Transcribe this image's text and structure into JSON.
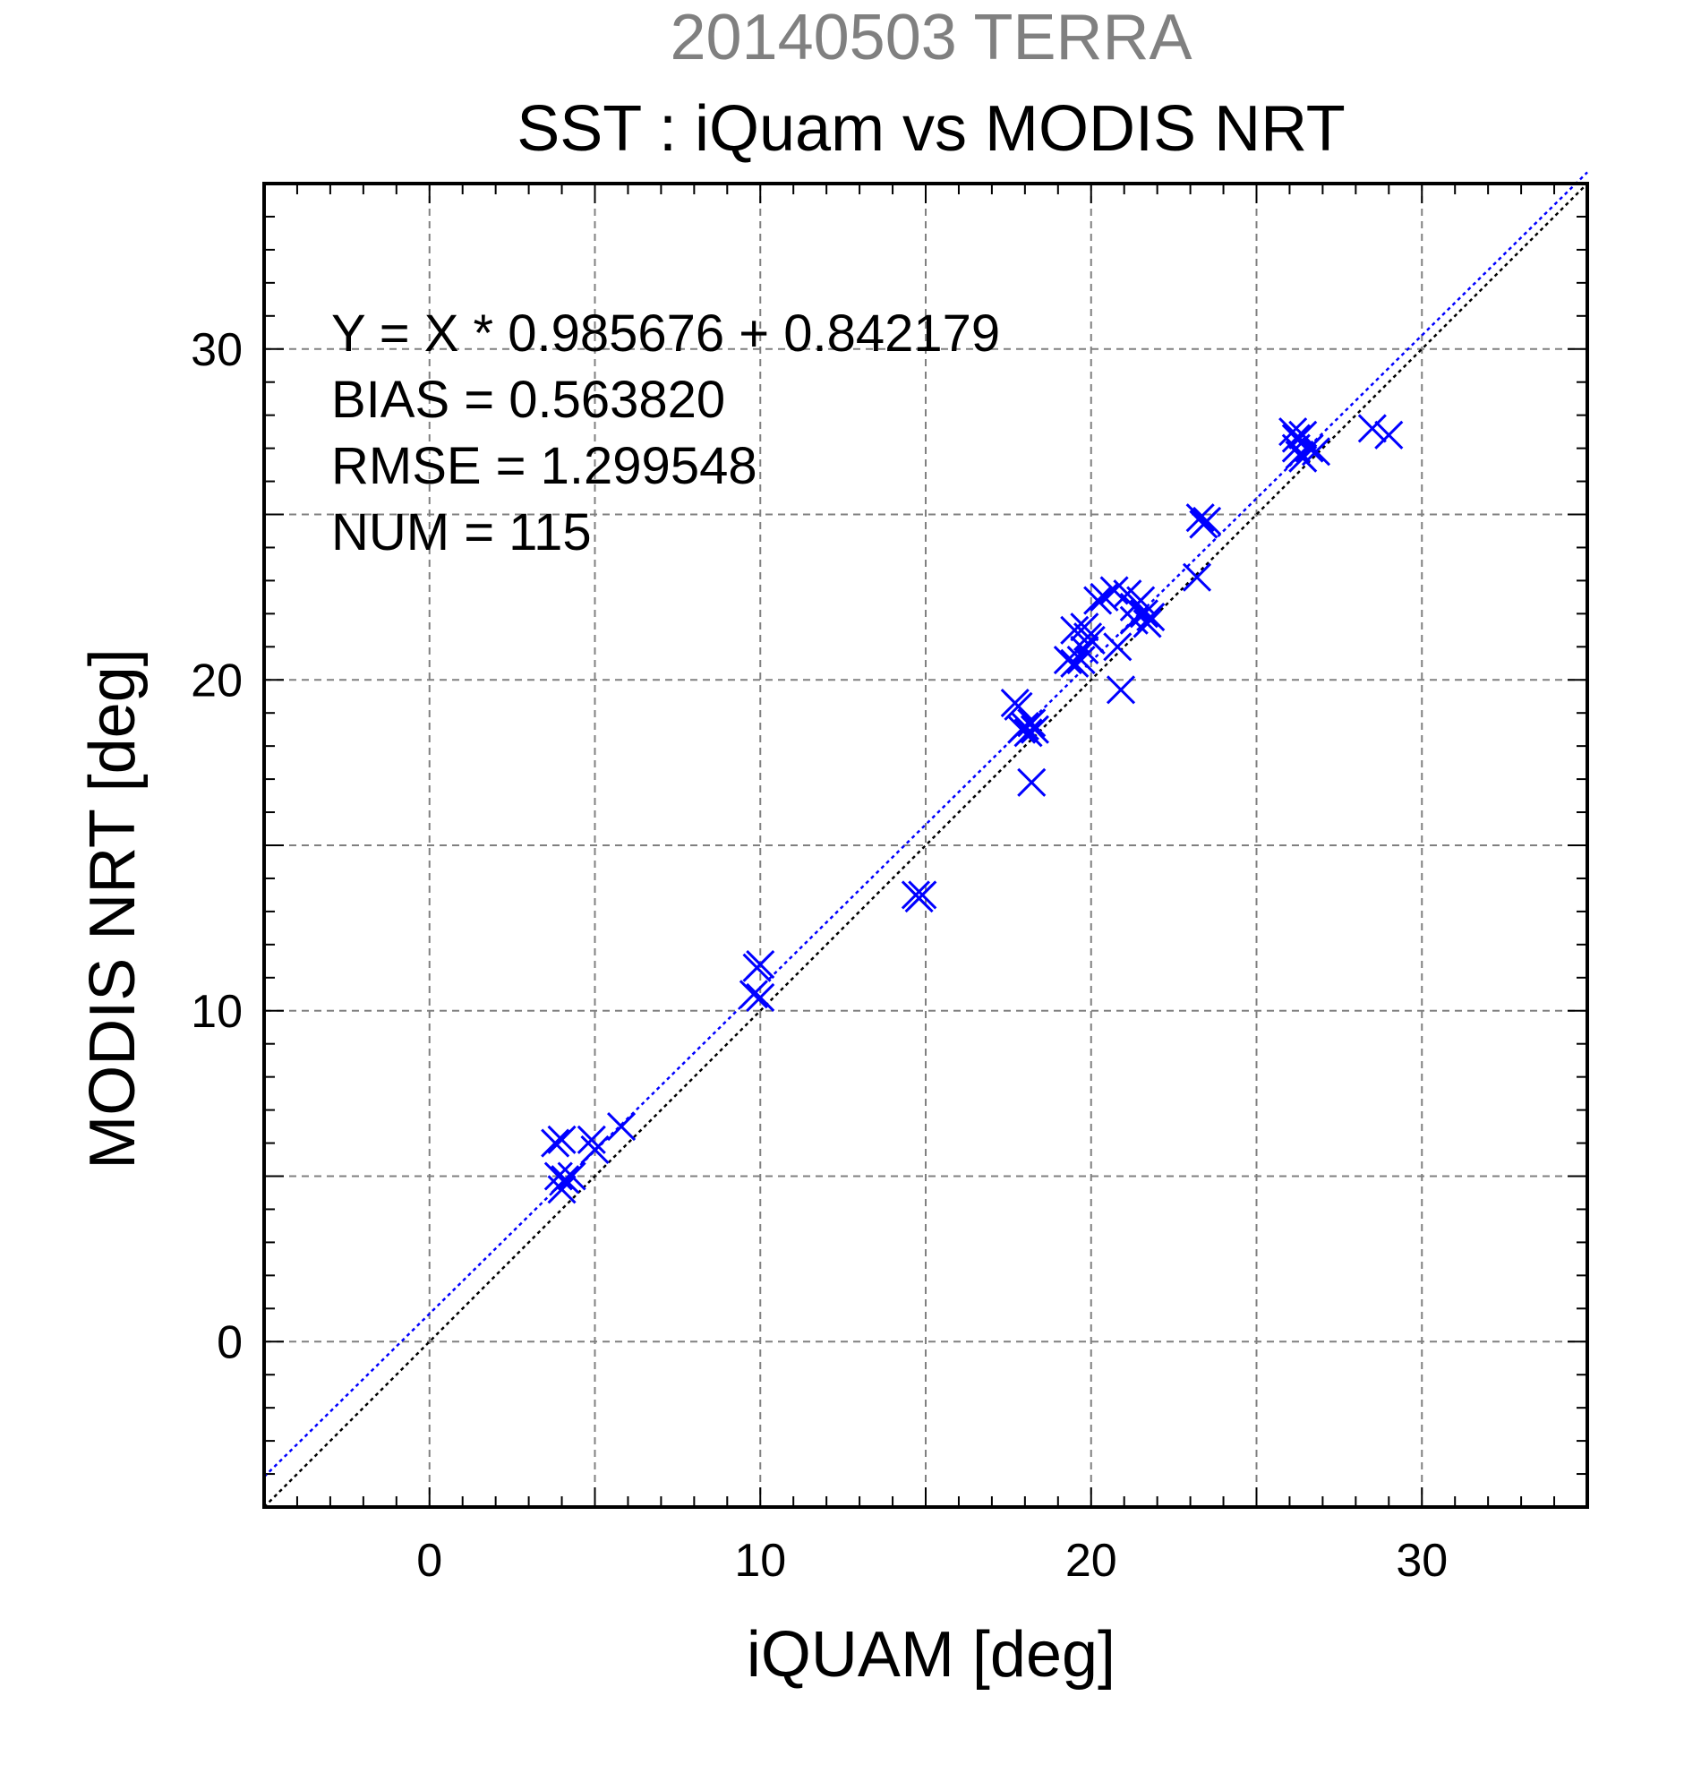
{
  "chart_data": {
    "type": "scatter",
    "title": "SST : iQuam vs MODIS NRT",
    "subtitle": "20140503 TERRA",
    "xlabel": "iQUAM [deg]",
    "ylabel": "MODIS NRT [deg]",
    "xlim": [
      -5,
      35
    ],
    "ylim": [
      -5,
      35
    ],
    "xticks": [
      "0",
      "10",
      "20",
      "30"
    ],
    "yticks": [
      "0",
      "10",
      "20",
      "30"
    ],
    "grid": true,
    "stats": [
      "Y = X * 0.985676 + 0.842179",
      "BIAS = 0.563820",
      "RMSE = 1.299548",
      "NUM = 115"
    ],
    "lines": [
      {
        "slope": 1.0,
        "intercept": 0.0,
        "color": "#000000",
        "style": "dotted"
      },
      {
        "slope": 0.985676,
        "intercept": 0.842179,
        "color": "#0000ff",
        "style": "dotted"
      }
    ],
    "marker_color": "#0000ff",
    "points": [
      [
        3.8,
        6.0
      ],
      [
        4.0,
        6.1
      ],
      [
        3.9,
        5.0
      ],
      [
        4.1,
        4.9
      ],
      [
        4.0,
        4.6
      ],
      [
        4.3,
        5.0
      ],
      [
        4.9,
        6.1
      ],
      [
        5.0,
        5.8
      ],
      [
        5.8,
        6.5
      ],
      [
        9.9,
        11.3
      ],
      [
        10.0,
        11.4
      ],
      [
        9.8,
        10.5
      ],
      [
        10.0,
        10.4
      ],
      [
        14.7,
        13.5
      ],
      [
        14.9,
        13.5
      ],
      [
        14.8,
        13.4
      ],
      [
        17.7,
        19.3
      ],
      [
        17.8,
        19.2
      ],
      [
        17.9,
        18.5
      ],
      [
        18.0,
        18.6
      ],
      [
        18.2,
        18.7
      ],
      [
        18.3,
        18.5
      ],
      [
        18.1,
        18.4
      ],
      [
        18.2,
        16.9
      ],
      [
        19.3,
        20.6
      ],
      [
        19.5,
        20.5
      ],
      [
        19.7,
        20.6
      ],
      [
        19.5,
        21.5
      ],
      [
        19.8,
        21.6
      ],
      [
        19.9,
        21.3
      ],
      [
        20.0,
        21.2
      ],
      [
        19.8,
        20.9
      ],
      [
        20.2,
        22.4
      ],
      [
        20.4,
        22.5
      ],
      [
        20.7,
        22.7
      ],
      [
        20.8,
        21.0
      ],
      [
        20.9,
        19.7
      ],
      [
        21.1,
        22.6
      ],
      [
        21.3,
        22.2
      ],
      [
        21.5,
        22.4
      ],
      [
        21.3,
        21.8
      ],
      [
        21.6,
        22.0
      ],
      [
        21.7,
        21.7
      ],
      [
        21.8,
        21.9
      ],
      [
        23.3,
        24.9
      ],
      [
        23.5,
        24.8
      ],
      [
        23.4,
        24.7
      ],
      [
        23.2,
        23.1
      ],
      [
        26.1,
        27.5
      ],
      [
        26.2,
        27.3
      ],
      [
        26.4,
        27.4
      ],
      [
        26.2,
        27.0
      ],
      [
        26.3,
        26.8
      ],
      [
        26.4,
        26.7
      ],
      [
        26.6,
        27.0
      ],
      [
        26.8,
        26.9
      ],
      [
        28.5,
        27.6
      ],
      [
        29.0,
        27.4
      ]
    ]
  }
}
